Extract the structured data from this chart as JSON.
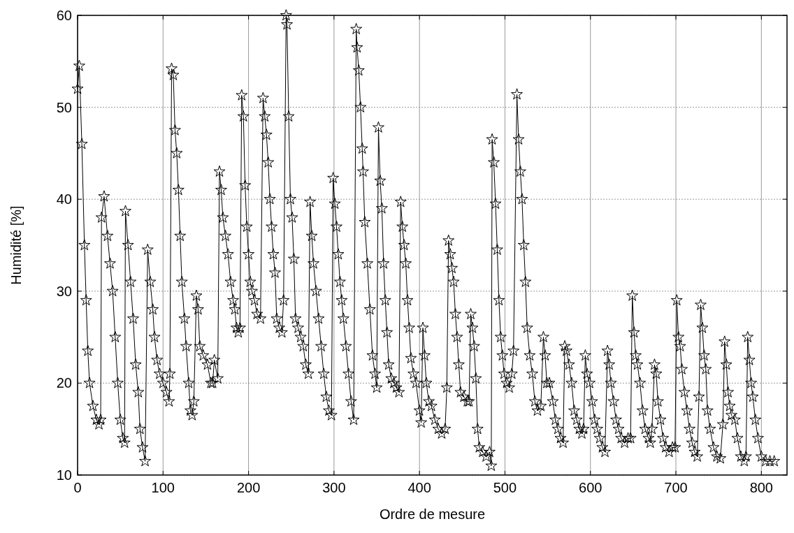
{
  "chart_data": {
    "type": "line",
    "xlabel": "Ordre de mesure",
    "ylabel": "Humidité [%]",
    "xlim": [
      0,
      830
    ],
    "ylim": [
      10,
      60
    ],
    "xticks": [
      0,
      100,
      200,
      300,
      400,
      500,
      600,
      700,
      800
    ],
    "yticks": [
      10,
      20,
      30,
      40,
      50,
      60
    ],
    "grid": true,
    "marker": "star",
    "line_style": "solid",
    "series": [
      {
        "color": "#000000",
        "x": [
          0,
          2,
          5,
          8,
          10,
          12,
          14,
          18,
          22,
          25,
          27,
          28,
          31,
          35,
          38,
          41,
          44,
          47,
          50,
          53,
          55,
          56,
          59,
          62,
          65,
          68,
          71,
          73,
          76,
          79,
          82,
          85,
          88,
          90,
          93,
          96,
          100,
          104,
          107,
          108,
          110,
          112,
          114,
          116,
          118,
          120,
          122,
          125,
          127,
          130,
          132,
          134,
          136,
          139,
          141,
          143,
          147,
          152,
          156,
          158,
          160,
          164,
          166,
          168,
          170,
          173,
          176,
          179,
          182,
          184,
          186,
          188,
          190,
          192,
          194,
          196,
          198,
          200,
          202,
          204,
          207,
          210,
          214,
          217,
          219,
          221,
          223,
          225,
          227,
          229,
          231,
          233,
          236,
          239,
          241,
          244,
          245,
          247,
          249,
          251,
          253,
          255,
          258,
          261,
          264,
          267,
          270,
          272,
          274,
          276,
          279,
          282,
          285,
          288,
          291,
          294,
          297,
          299,
          301,
          303,
          305,
          307,
          309,
          311,
          314,
          317,
          320,
          323,
          326,
          327,
          329,
          331,
          333,
          334,
          336,
          339,
          342,
          345,
          348,
          350,
          352,
          354,
          356,
          358,
          360,
          362,
          364,
          367,
          370,
          373,
          376,
          378,
          380,
          382,
          384,
          386,
          388,
          390,
          393,
          396,
          400,
          402,
          404,
          406,
          408,
          411,
          414,
          418,
          422,
          426,
          430,
          432,
          434,
          436,
          438,
          440,
          442,
          444,
          446,
          448,
          452,
          456,
          458,
          460,
          462,
          464,
          466,
          468,
          470,
          474,
          478,
          482,
          484,
          485,
          487,
          489,
          491,
          493,
          495,
          497,
          499,
          502,
          505,
          508,
          510,
          514,
          516,
          518,
          520,
          522,
          524,
          526,
          529,
          532,
          535,
          538,
          542,
          545,
          547,
          549,
          552,
          556,
          559,
          562,
          565,
          568,
          570,
          572,
          575,
          578,
          581,
          584,
          587,
          590,
          592,
          594,
          596,
          599,
          602,
          605,
          608,
          611,
          614,
          617,
          620,
          622,
          624,
          627,
          630,
          633,
          636,
          640,
          644,
          647,
          649,
          651,
          653,
          655,
          658,
          661,
          664,
          668,
          670,
          672,
          675,
          677,
          679,
          682,
          685,
          688,
          692,
          696,
          699,
          701,
          703,
          705,
          707,
          710,
          713,
          716,
          719,
          722,
          725,
          727,
          729,
          731,
          733,
          735,
          737,
          740,
          744,
          748,
          752,
          755,
          757,
          759,
          761,
          763,
          765,
          769,
          772,
          776,
          780,
          782,
          784,
          786,
          788,
          790,
          793,
          796,
          800,
          805,
          810,
          815
        ],
        "values": [
          52,
          54.5,
          46,
          35,
          29,
          23.5,
          20,
          17.5,
          16,
          15.5,
          16,
          38,
          40.3,
          36,
          33,
          30,
          25,
          20,
          16,
          14,
          13.5,
          38.7,
          35,
          31,
          27,
          22,
          19,
          15,
          13,
          11.5,
          34.5,
          31,
          28,
          25,
          22.5,
          21,
          20,
          19,
          18,
          21,
          54.2,
          53.5,
          47.5,
          45,
          41,
          36,
          31,
          27,
          24,
          20,
          17,
          16.5,
          18,
          29.5,
          28,
          24,
          23,
          22,
          20,
          20,
          22.5,
          20.5,
          43,
          41,
          38,
          36,
          34,
          31,
          29,
          28,
          26,
          25.5,
          26,
          51.3,
          49,
          41.5,
          37,
          34,
          31,
          30,
          29,
          27.5,
          27,
          51,
          49,
          47,
          44,
          40,
          37,
          34,
          32,
          27,
          26,
          25.5,
          29,
          60,
          59,
          49,
          40,
          38,
          33.5,
          27,
          26,
          25,
          24,
          22,
          21,
          39.7,
          36,
          33,
          30,
          27,
          24,
          21,
          18.5,
          17,
          16.5,
          42.3,
          39.5,
          37,
          34,
          31,
          29,
          27,
          24,
          21,
          18,
          16,
          58.5,
          56.5,
          54,
          50,
          45.5,
          43,
          37.5,
          33,
          28,
          23,
          21,
          19.5,
          47.8,
          42,
          39,
          33,
          29,
          25.5,
          22,
          20.5,
          20,
          19.5,
          19,
          39.7,
          37,
          35,
          33,
          29,
          26,
          22.7,
          21,
          20,
          17,
          15.7,
          26,
          23,
          20,
          18,
          17.5,
          16,
          15,
          14.5,
          15,
          19.5,
          35.5,
          34,
          32.5,
          31,
          27.5,
          25,
          22,
          19,
          18.5,
          18,
          18,
          27.5,
          26,
          24,
          20.5,
          15,
          13,
          12.5,
          12,
          12.5,
          11,
          46.5,
          44,
          39.5,
          34.5,
          29,
          25,
          23,
          21,
          20,
          19.5,
          21,
          23.5,
          51.4,
          46.5,
          43,
          40,
          35,
          31,
          26,
          23,
          21,
          18,
          17,
          17.5,
          25,
          23,
          20,
          20,
          18,
          16,
          15,
          14,
          13.5,
          24,
          23.5,
          22,
          20,
          17,
          16,
          15,
          14.5,
          15,
          23,
          21,
          20,
          18,
          16,
          15,
          14,
          13,
          12.5,
          23.5,
          22,
          20,
          18,
          16,
          15,
          14,
          13.5,
          14,
          14,
          29.5,
          25.5,
          23,
          22,
          20,
          17,
          15,
          14,
          13.5,
          15,
          22,
          21,
          18,
          16,
          14,
          13,
          12.5,
          13,
          13,
          29,
          25,
          24,
          21.5,
          19,
          17,
          15,
          13.5,
          12.5,
          12,
          18.5,
          28.5,
          26,
          23,
          21.5,
          17,
          15,
          13,
          12,
          11.8,
          15.5,
          24.5,
          22,
          19,
          17.5,
          16.5,
          16,
          14,
          12,
          11.5,
          12,
          25,
          22.5,
          20,
          18.5,
          16,
          14,
          12,
          11.5,
          11.5,
          11.5
        ]
      }
    ]
  }
}
